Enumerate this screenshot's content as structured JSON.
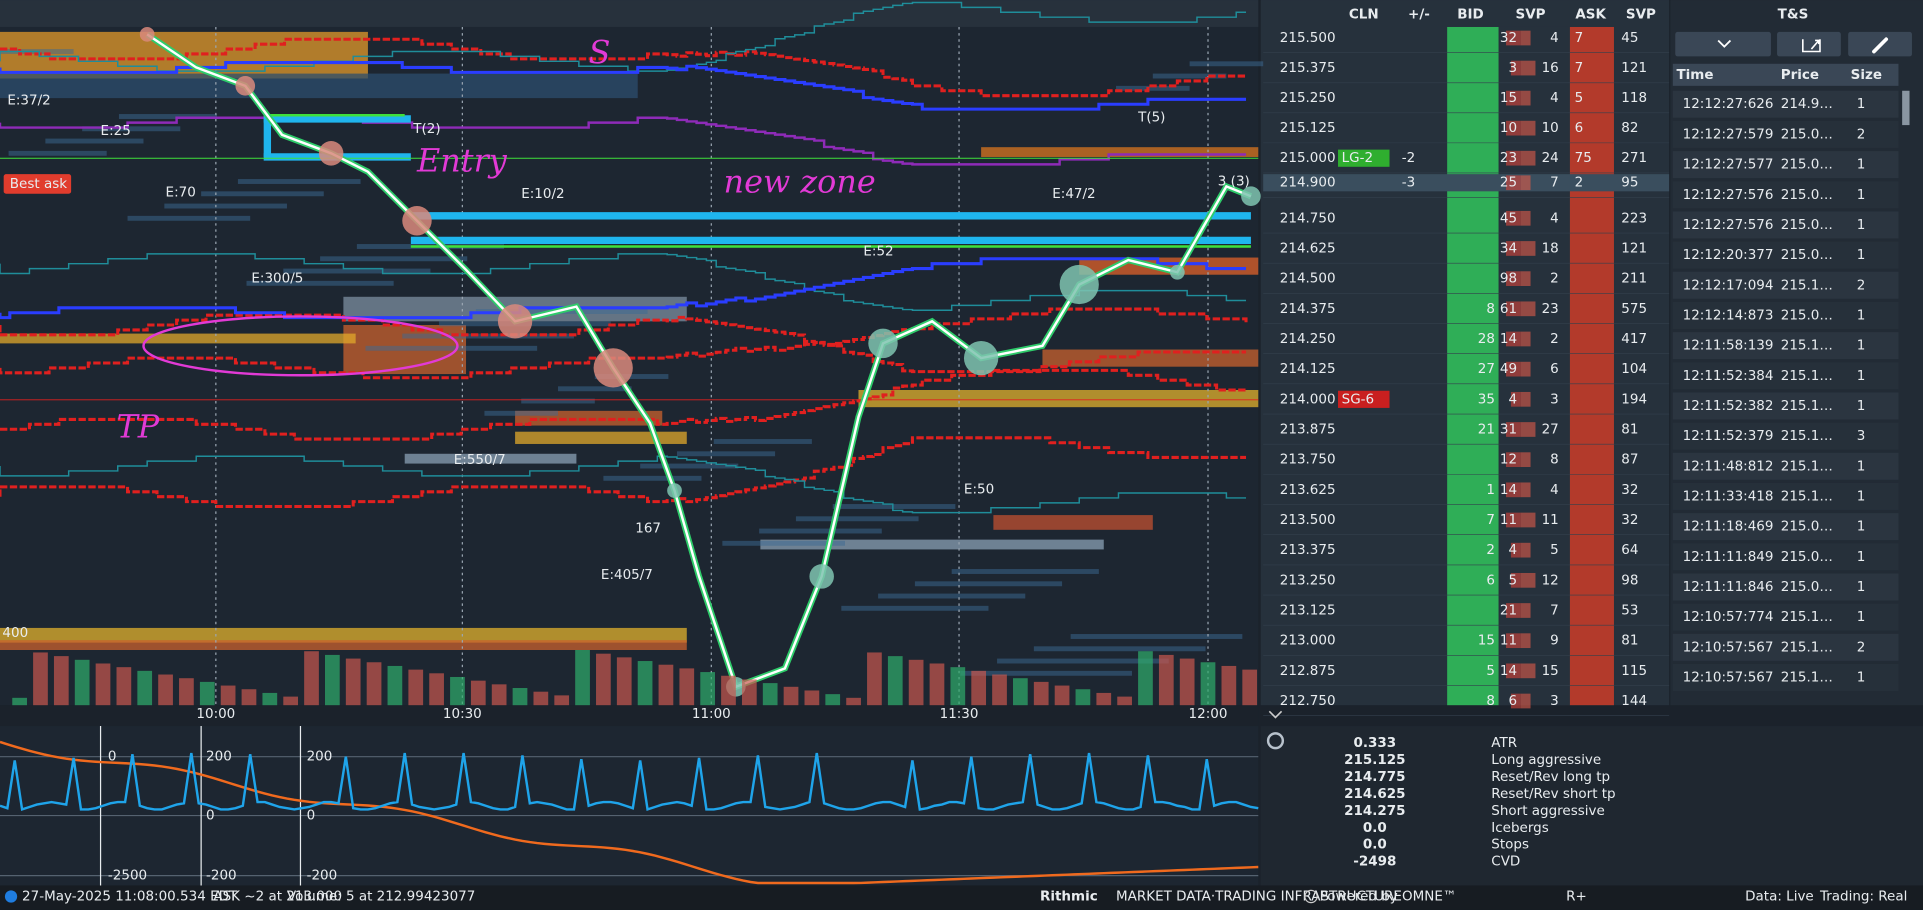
{
  "chart": {
    "best_ask_tag": "Best ask",
    "labels": [
      "E:70",
      "E:300/5",
      "E:550/7",
      "E:405/7",
      "E:52",
      "E:50",
      "167",
      "E:37/2",
      "E:25",
      "T(2)",
      "E:10/2",
      "E:47/2",
      "T(5)",
      "3 (3)",
      "400"
    ],
    "annotations": [
      "Entry",
      "new zone",
      "TP",
      "S"
    ],
    "time_labels": [
      "10:00",
      "10:30",
      "11:00",
      "11:30",
      "12:00"
    ],
    "lower_labels": [
      "0",
      "200",
      "200",
      "0",
      "0",
      "-2500",
      "-200",
      "-200"
    ]
  },
  "ladder": {
    "headers": [
      "CLN",
      "+/-",
      "BID",
      "SVP",
      "ASK",
      "SVP"
    ],
    "rows": [
      {
        "price": "215.500",
        "cells": [
          null,
          "32",
          "4",
          "7",
          "45"
        ]
      },
      {
        "price": "215.375",
        "cells": [
          null,
          "3",
          "16",
          "7",
          "121"
        ]
      },
      {
        "price": "215.250",
        "cells": [
          null,
          "15",
          "4",
          "5",
          "118"
        ]
      },
      {
        "price": "215.125",
        "cells": [
          null,
          "10",
          "10",
          "6",
          "82"
        ]
      },
      {
        "price": "215.000",
        "tag": "LG-2",
        "change": "-2",
        "cells": [
          null,
          "23",
          "24",
          "75",
          "271"
        ]
      },
      {
        "price": "214.900",
        "change": "-3",
        "cells": [
          null,
          "25",
          "7",
          "2",
          "95"
        ]
      },
      {
        "price": "214.750",
        "cells": [
          null,
          "45",
          "4",
          null,
          "223"
        ]
      },
      {
        "price": "214.625",
        "cells": [
          null,
          "34",
          "18",
          null,
          "121"
        ]
      },
      {
        "price": "214.500",
        "cells": [
          null,
          "98",
          "2",
          null,
          "211"
        ]
      },
      {
        "price": "214.375",
        "cells": [
          "8",
          "61",
          "23",
          null,
          "575"
        ]
      },
      {
        "price": "214.250",
        "cells": [
          "28",
          "14",
          "2",
          null,
          "417"
        ]
      },
      {
        "price": "214.125",
        "cells": [
          "27",
          "49",
          "6",
          null,
          "104"
        ]
      },
      {
        "price": "214.000",
        "tag": "SG-6",
        "cells": [
          "35",
          "4",
          "3",
          null,
          "194"
        ]
      },
      {
        "price": "213.875",
        "cells": [
          "21",
          "31",
          "27",
          null,
          "81"
        ]
      },
      {
        "price": "213.750",
        "cells": [
          null,
          "12",
          "8",
          null,
          "87"
        ]
      },
      {
        "price": "213.625",
        "cells": [
          "1",
          "14",
          "4",
          null,
          "32"
        ]
      },
      {
        "price": "213.500",
        "cells": [
          "7",
          "11",
          "11",
          null,
          "32"
        ]
      },
      {
        "price": "213.375",
        "cells": [
          "2",
          "4",
          "5",
          null,
          "64"
        ]
      },
      {
        "price": "213.250",
        "cells": [
          "6",
          "5",
          "12",
          null,
          "98"
        ]
      },
      {
        "price": "213.125",
        "cells": [
          null,
          "21",
          "7",
          null,
          "53"
        ]
      },
      {
        "price": "213.000",
        "cells": [
          "15",
          "11",
          "9",
          null,
          "81"
        ]
      },
      {
        "price": "212.875",
        "cells": [
          "5",
          "14",
          "15",
          null,
          "115"
        ]
      },
      {
        "price": "212.750",
        "cells": [
          "8",
          "6",
          "3",
          null,
          "144"
        ]
      }
    ]
  },
  "time_and_sales": {
    "title": "T&S",
    "headers": [
      "Time",
      "Price",
      "Size"
    ],
    "rows": [
      {
        "time": "12:12:27:626",
        "price": "214.9…",
        "size": "1",
        "color": "#3fd14a"
      },
      {
        "time": "12:12:27:579",
        "price": "215.0…",
        "size": "2",
        "color": "#ef4b4b"
      },
      {
        "time": "12:12:27:577",
        "price": "215.0…",
        "size": "1",
        "color": "#ef4b4b"
      },
      {
        "time": "12:12:27:576",
        "price": "215.0…",
        "size": "1",
        "color": "#ef4b4b"
      },
      {
        "time": "12:12:27:576",
        "price": "215.0…",
        "size": "1",
        "color": "#ef4b4b"
      },
      {
        "time": "12:12:20:377",
        "price": "215.0…",
        "size": "1",
        "color": "#3fd14a"
      },
      {
        "time": "12:12:17:094",
        "price": "215.1…",
        "size": "2",
        "color": "#3fd14a"
      },
      {
        "time": "12:12:14:873",
        "price": "215.0…",
        "size": "1",
        "color": "#3fd14a"
      },
      {
        "time": "12:11:58:139",
        "price": "215.1…",
        "size": "1",
        "color": "#ef4b4b"
      },
      {
        "time": "12:11:52:384",
        "price": "215.1…",
        "size": "1",
        "color": "#ef4b4b"
      },
      {
        "time": "12:11:52:382",
        "price": "215.1…",
        "size": "1",
        "color": "#ef4b4b"
      },
      {
        "time": "12:11:52:379",
        "price": "215.1…",
        "size": "3",
        "color": "#ef4b4b"
      },
      {
        "time": "12:11:48:812",
        "price": "215.1…",
        "size": "1",
        "color": "#3fd14a"
      },
      {
        "time": "12:11:33:418",
        "price": "215.1…",
        "size": "1",
        "color": "#3fd14a"
      },
      {
        "time": "12:11:18:469",
        "price": "215.0…",
        "size": "1",
        "color": "#3fd14a"
      },
      {
        "time": "12:11:11:849",
        "price": "215.0…",
        "size": "1",
        "color": "#ef4b4b"
      },
      {
        "time": "12:11:11:846",
        "price": "215.0…",
        "size": "1",
        "color": "#ef4b4b"
      },
      {
        "time": "12:10:57:774",
        "price": "215.1…",
        "size": "1",
        "color": "#ef4b4b"
      },
      {
        "time": "12:10:57:567",
        "price": "215.1…",
        "size": "2",
        "color": "#3fd14a"
      },
      {
        "time": "12:10:57:567",
        "price": "215.1…",
        "size": "1",
        "color": "#3fd14a"
      }
    ]
  },
  "indicators": [
    {
      "value": "0.333",
      "label": "ATR",
      "color": "#2a55ff"
    },
    {
      "value": "215.125",
      "label": "Long aggressive",
      "color": "#8e2bb8"
    },
    {
      "value": "214.775",
      "label": "Reset/Rev long tp",
      "color": "#3fe03a"
    },
    {
      "value": "214.625",
      "label": "Reset/Rev short tp",
      "color": "#3fe03a"
    },
    {
      "value": "214.275",
      "label": "Short aggressive",
      "color": "#8e2bb8"
    },
    {
      "value": "0.0",
      "label": "Icebergs",
      "color": "#1fa4ea"
    },
    {
      "value": "0.0",
      "label": "Stops",
      "color": "#f06a1e"
    },
    {
      "value": "-2498",
      "label": "CVD",
      "color": "#f06a1e"
    }
  ],
  "status_bar": {
    "timestamp": "27-May-2025 11:08:00.534 EDT",
    "ask": "ASK ~2 at 213.000",
    "volume": "Volume: 5 at 212.99423077",
    "brand": "Rithmic",
    "brand_tagline": "MARKET DATA·TRADING INFRASTRUCTURE",
    "powered": "Powered by OMNE™",
    "rplus": "R+",
    "data_mode": "Data: Live",
    "trading_mode": "Trading: Real"
  }
}
